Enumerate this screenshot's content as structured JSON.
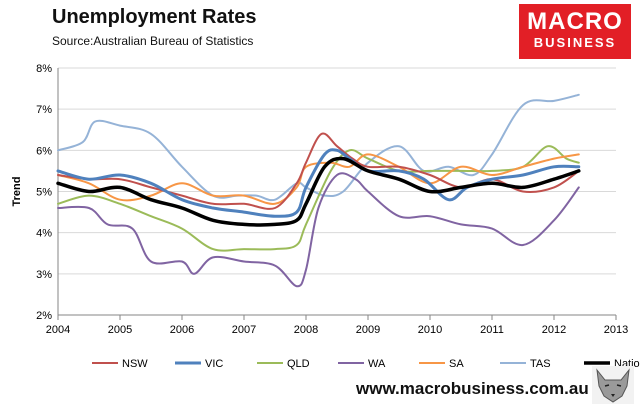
{
  "header": {
    "title": "Unemployment Rates",
    "source": "Source:Australian Bureau of Statistics"
  },
  "logo": {
    "line1": "MACRO",
    "line2": "BUSINESS"
  },
  "footer": {
    "website": "www.macrobusiness.com.au"
  },
  "colors": {
    "NSW": "#c0504d",
    "VIC": "#4f81bd",
    "QLD": "#9bbb59",
    "WA": "#8064a2",
    "SA": "#f79646",
    "TAS": "#95b3d7",
    "National": "#000000",
    "brand": "#e21f26",
    "grid": "#d9d9d9",
    "axis": "#868686"
  },
  "chart_data": {
    "type": "line",
    "title": "Unemployment Rates",
    "xlabel": "",
    "ylabel": "Trend",
    "xlim": [
      2004,
      2013
    ],
    "ylim": [
      2,
      8
    ],
    "x_ticks": [
      "2004",
      "2005",
      "2006",
      "2007",
      "2008",
      "2009",
      "2010",
      "2011",
      "2012",
      "2013"
    ],
    "y_ticks": [
      "2%",
      "3%",
      "4%",
      "5%",
      "6%",
      "7%",
      "8%"
    ],
    "grid": true,
    "legend_position": "bottom",
    "series": [
      {
        "name": "NSW",
        "x": [
          2004.0,
          2004.5,
          2005.0,
          2005.5,
          2006.0,
          2006.5,
          2007.0,
          2007.5,
          2007.85,
          2008.0,
          2008.25,
          2008.5,
          2008.75,
          2009.0,
          2009.5,
          2010.0,
          2010.5,
          2011.0,
          2011.5,
          2012.0,
          2012.4
        ],
        "y": [
          5.4,
          5.3,
          5.3,
          5.1,
          4.9,
          4.7,
          4.7,
          4.6,
          5.2,
          5.7,
          6.4,
          6.1,
          5.8,
          5.6,
          5.6,
          5.4,
          5.1,
          5.3,
          5.0,
          5.1,
          5.5
        ]
      },
      {
        "name": "VIC",
        "x": [
          2004.0,
          2004.5,
          2005.0,
          2005.5,
          2006.0,
          2006.5,
          2007.0,
          2007.5,
          2007.85,
          2008.0,
          2008.3,
          2008.5,
          2008.7,
          2009.0,
          2009.5,
          2009.9,
          2010.3,
          2010.6,
          2011.0,
          2011.5,
          2012.0,
          2012.4
        ],
        "y": [
          5.5,
          5.3,
          5.4,
          5.2,
          4.8,
          4.6,
          4.5,
          4.4,
          4.5,
          5.1,
          5.9,
          6.0,
          5.8,
          5.5,
          5.5,
          5.3,
          4.8,
          5.1,
          5.3,
          5.4,
          5.6,
          5.6
        ]
      },
      {
        "name": "QLD",
        "x": [
          2004.0,
          2004.5,
          2005.0,
          2005.5,
          2006.0,
          2006.5,
          2007.0,
          2007.5,
          2007.85,
          2008.0,
          2008.4,
          2008.7,
          2009.0,
          2009.5,
          2010.0,
          2010.5,
          2011.0,
          2011.5,
          2011.9,
          2012.2,
          2012.4
        ],
        "y": [
          4.7,
          4.9,
          4.7,
          4.4,
          4.1,
          3.6,
          3.6,
          3.6,
          3.7,
          4.2,
          5.5,
          6.0,
          5.8,
          5.5,
          5.5,
          5.5,
          5.5,
          5.6,
          6.1,
          5.8,
          5.7
        ]
      },
      {
        "name": "WA",
        "x": [
          2004.0,
          2004.5,
          2004.8,
          2005.2,
          2005.5,
          2006.0,
          2006.2,
          2006.5,
          2007.0,
          2007.5,
          2007.85,
          2008.0,
          2008.2,
          2008.5,
          2008.8,
          2009.0,
          2009.5,
          2010.0,
          2010.5,
          2011.0,
          2011.5,
          2012.0,
          2012.4
        ],
        "y": [
          4.6,
          4.6,
          4.2,
          4.1,
          3.3,
          3.3,
          3.0,
          3.4,
          3.3,
          3.2,
          2.7,
          3.1,
          4.6,
          5.4,
          5.3,
          5.0,
          4.4,
          4.4,
          4.2,
          4.1,
          3.7,
          4.3,
          5.1
        ]
      },
      {
        "name": "SA",
        "x": [
          2004.0,
          2004.5,
          2005.0,
          2005.5,
          2006.0,
          2006.5,
          2007.0,
          2007.5,
          2007.85,
          2008.0,
          2008.4,
          2008.7,
          2009.0,
          2009.5,
          2010.0,
          2010.5,
          2011.0,
          2011.5,
          2012.0,
          2012.4
        ],
        "y": [
          5.4,
          5.2,
          4.8,
          4.9,
          5.2,
          4.9,
          4.9,
          4.7,
          5.1,
          5.6,
          5.7,
          5.6,
          5.9,
          5.6,
          5.2,
          5.6,
          5.4,
          5.6,
          5.8,
          5.9
        ]
      },
      {
        "name": "TAS",
        "x": [
          2004.0,
          2004.4,
          2004.6,
          2005.0,
          2005.5,
          2006.0,
          2006.5,
          2006.9,
          2007.2,
          2007.5,
          2007.85,
          2008.0,
          2008.3,
          2008.6,
          2009.0,
          2009.5,
          2009.9,
          2010.3,
          2010.7,
          2011.0,
          2011.5,
          2012.0,
          2012.4
        ],
        "y": [
          6.0,
          6.2,
          6.7,
          6.6,
          6.4,
          5.6,
          4.9,
          4.9,
          4.9,
          4.8,
          5.2,
          5.1,
          4.9,
          5.0,
          5.7,
          6.1,
          5.5,
          5.6,
          5.4,
          5.9,
          7.1,
          7.2,
          7.35
        ]
      },
      {
        "name": "National",
        "x": [
          2004.0,
          2004.5,
          2005.0,
          2005.5,
          2006.0,
          2006.5,
          2007.0,
          2007.5,
          2007.85,
          2008.0,
          2008.3,
          2008.6,
          2009.0,
          2009.5,
          2010.0,
          2010.5,
          2011.0,
          2011.5,
          2012.0,
          2012.4
        ],
        "y": [
          5.2,
          5.0,
          5.1,
          4.8,
          4.6,
          4.3,
          4.2,
          4.2,
          4.3,
          4.7,
          5.6,
          5.8,
          5.5,
          5.3,
          5.0,
          5.1,
          5.2,
          5.1,
          5.3,
          5.5
        ]
      }
    ]
  }
}
